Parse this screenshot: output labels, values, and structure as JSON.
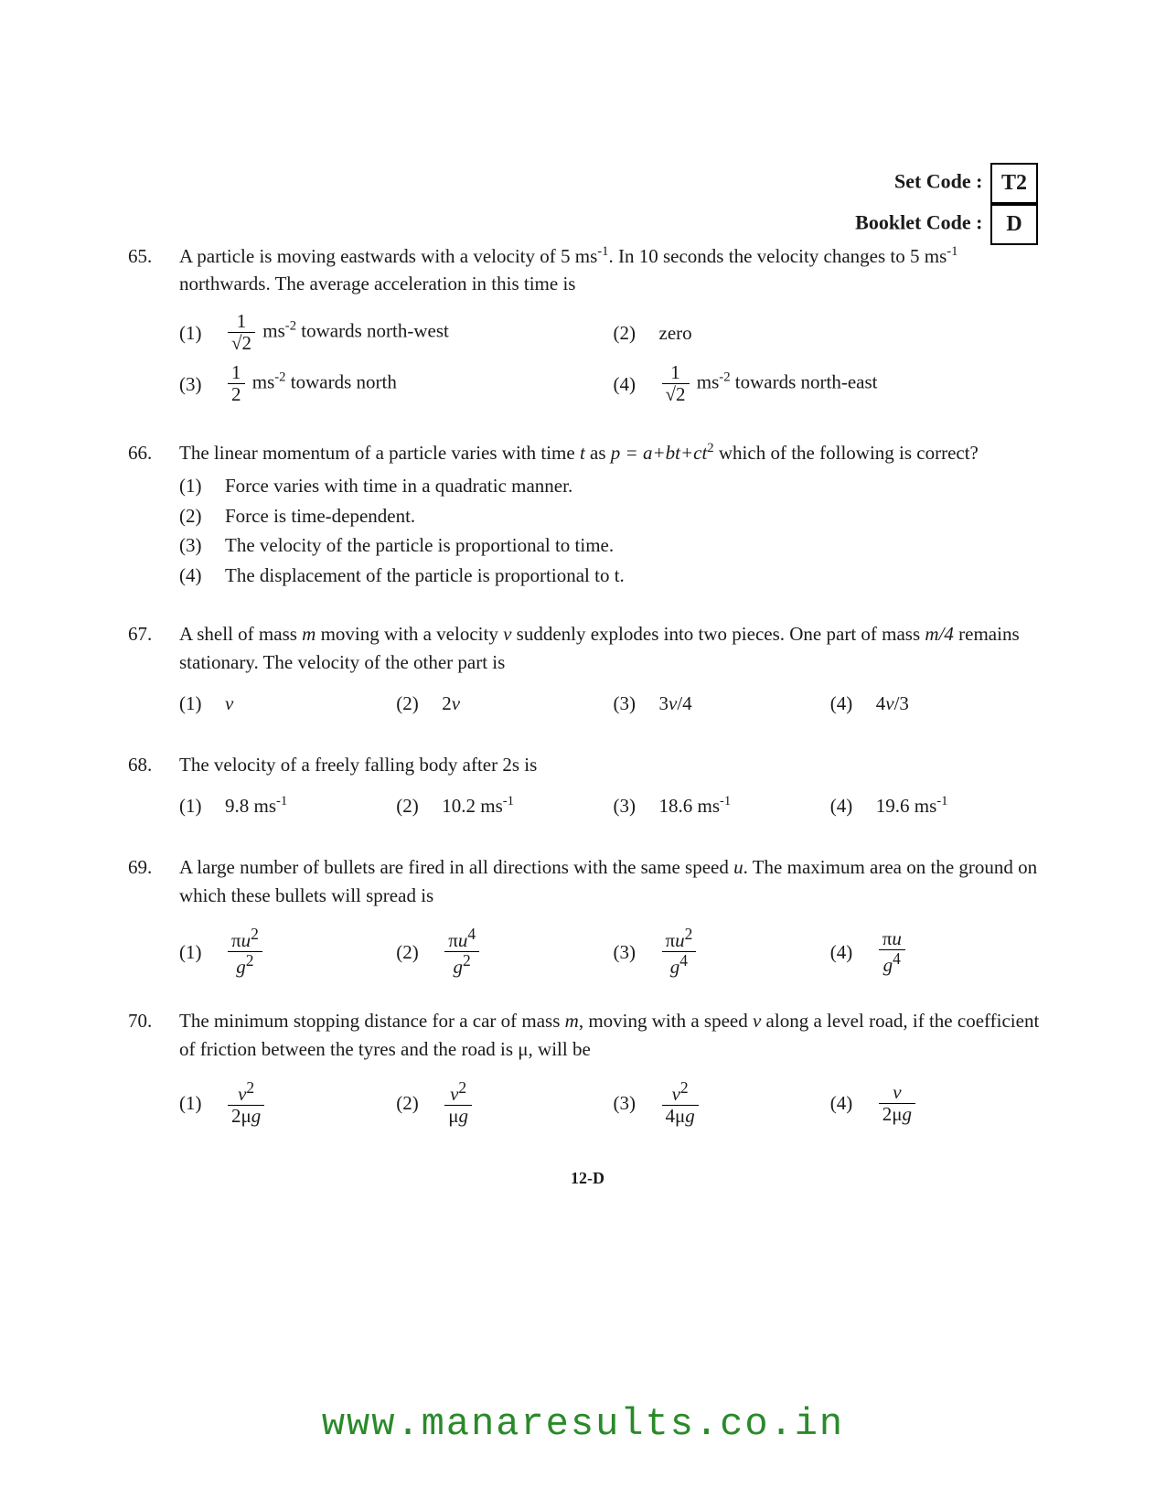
{
  "header": {
    "set_code_label": "Set Code :",
    "set_code_value": "T2",
    "booklet_code_label": "Booklet Code :",
    "booklet_code_value": "D"
  },
  "questions": [
    {
      "number": "65.",
      "text_parts": [
        "A particle is moving eastwards with a velocity of 5 ms",
        "-1",
        ". In 10 seconds the velocity changes to 5 ms",
        "-1",
        " northwards. The average acceleration in this time is"
      ],
      "layout": "two-col",
      "options": [
        {
          "num": "(1)",
          "frac_num": "1",
          "frac_den": "√2",
          "suffix": " ms",
          "sup": "-2",
          "tail": " towards north-west"
        },
        {
          "num": "(2)",
          "text": "zero"
        },
        {
          "num": "(3)",
          "frac_num": "1",
          "frac_den": "2",
          "suffix": " ms",
          "sup": "-2",
          "tail": " towards north"
        },
        {
          "num": "(4)",
          "frac_num": "1",
          "frac_den": "√2",
          "suffix": " ms",
          "sup": "-2",
          "tail": " towards north-east"
        }
      ]
    },
    {
      "number": "66.",
      "text_parts": [
        "The linear momentum of a particle varies with time ",
        "t",
        " as ",
        "p = a+bt+ct",
        "2",
        " which of the following is correct?"
      ],
      "layout": "list",
      "options": [
        {
          "num": "(1)",
          "text": "Force varies with time in a quadratic manner."
        },
        {
          "num": "(2)",
          "text": "Force is time-dependent."
        },
        {
          "num": "(3)",
          "text": "The velocity of the particle is proportional to time."
        },
        {
          "num": "(4)",
          "text": "The displacement of the particle is proportional to t."
        }
      ]
    },
    {
      "number": "67.",
      "text_parts": [
        "A shell of mass ",
        "m",
        " moving with a velocity ",
        "v",
        " suddenly explodes into two pieces. One part of mass ",
        "m/4",
        " remains stationary. The velocity of the other part is"
      ],
      "layout": "four-col",
      "options": [
        {
          "num": "(1)",
          "italic": "v"
        },
        {
          "num": "(2)",
          "pre": "2",
          "italic": "v"
        },
        {
          "num": "(3)",
          "pre": "3",
          "italic": "v",
          "post": "/4"
        },
        {
          "num": "(4)",
          "pre": "4",
          "italic": "v",
          "post": "/3"
        }
      ]
    },
    {
      "number": "68.",
      "text_plain": "The velocity of a freely falling body after 2s is",
      "layout": "four-col",
      "options": [
        {
          "num": "(1)",
          "text": "9.8 ms",
          "sup": "-1"
        },
        {
          "num": "(2)",
          "text": "10.2 ms",
          "sup": "-1"
        },
        {
          "num": "(3)",
          "text": "18.6 ms",
          "sup": "-1"
        },
        {
          "num": "(4)",
          "text": "19.6 ms",
          "sup": "-1"
        }
      ]
    },
    {
      "number": "69.",
      "text_parts": [
        "A large number of bullets are fired in all directions with the same speed ",
        "u",
        ". The maximum area on the ground on which these bullets will spread is"
      ],
      "layout": "four-col",
      "options": [
        {
          "num": "(1)",
          "frac_num_html": "π<i>u</i><sup>2</sup>",
          "frac_den_html": "<i>g</i><sup>2</sup>"
        },
        {
          "num": "(2)",
          "frac_num_html": "π<i>u</i><sup>4</sup>",
          "frac_den_html": "<i>g</i><sup>2</sup>"
        },
        {
          "num": "(3)",
          "frac_num_html": "π<i>u</i><sup>2</sup>",
          "frac_den_html": "<i>g</i><sup>4</sup>"
        },
        {
          "num": "(4)",
          "frac_num_html": "π<i>u</i>",
          "frac_den_html": "<i>g</i><sup>4</sup>"
        }
      ]
    },
    {
      "number": "70.",
      "text_parts": [
        "The minimum stopping distance for a car of mass ",
        "m",
        ", moving with a speed ",
        "v",
        " along a level road, if the coefficient of friction between the tyres and the road is μ, will be"
      ],
      "layout": "four-col",
      "options": [
        {
          "num": "(1)",
          "frac_num_html": "<i>v</i><sup>2</sup>",
          "frac_den_html": "2μ<i>g</i>"
        },
        {
          "num": "(2)",
          "frac_num_html": "<i>v</i><sup>2</sup>",
          "frac_den_html": "μ<i>g</i>"
        },
        {
          "num": "(3)",
          "frac_num_html": "<i>v</i><sup>2</sup>",
          "frac_den_html": "4μ<i>g</i>"
        },
        {
          "num": "(4)",
          "frac_num_html": "<i>v</i>",
          "frac_den_html": "2μ<i>g</i>"
        }
      ]
    }
  ],
  "footer": "12-D",
  "watermark": "www.manaresults.co.in",
  "colors": {
    "text": "#1a1a1a",
    "background": "#ffffff",
    "watermark": "#2a8a2a"
  },
  "typography": {
    "body_font": "Times New Roman",
    "body_size_pt": 16,
    "watermark_font": "Courier New",
    "watermark_size_pt": 32
  }
}
